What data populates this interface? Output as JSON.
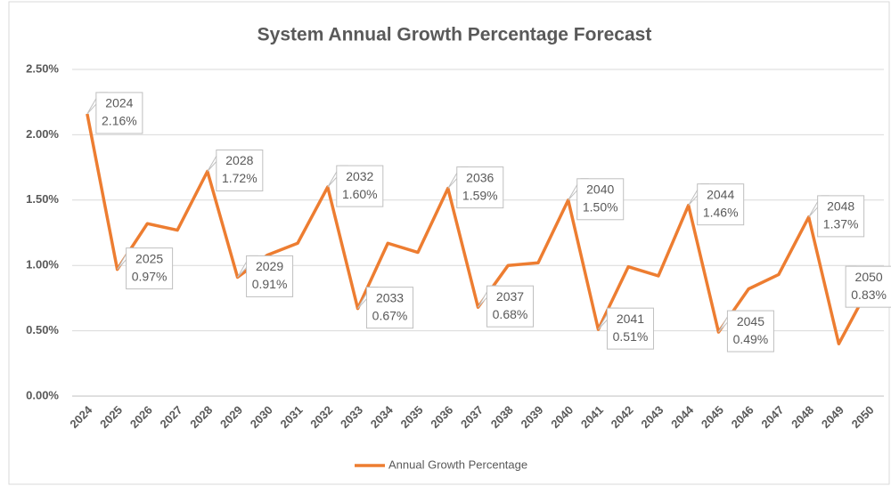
{
  "chart_data": {
    "type": "line",
    "title": "System Annual Growth Percentage Forecast",
    "categories": [
      "2024",
      "2025",
      "2026",
      "2027",
      "2028",
      "2029",
      "2030",
      "2031",
      "2032",
      "2033",
      "2034",
      "2035",
      "2036",
      "2037",
      "2038",
      "2039",
      "2040",
      "2041",
      "2042",
      "2043",
      "2044",
      "2045",
      "2046",
      "2047",
      "2048",
      "2049",
      "2050"
    ],
    "series": [
      {
        "name": "Annual Growth Percentage",
        "color": "#ed7d31",
        "values": [
          2.16,
          0.97,
          1.32,
          1.27,
          1.72,
          0.91,
          1.08,
          1.17,
          1.6,
          0.67,
          1.17,
          1.1,
          1.59,
          0.68,
          1.0,
          1.02,
          1.5,
          0.51,
          0.99,
          0.92,
          1.46,
          0.49,
          0.82,
          0.93,
          1.37,
          0.4,
          0.83
        ],
        "value_labels": [
          "2.16%",
          "0.97%",
          null,
          null,
          "1.72%",
          "0.91%",
          null,
          null,
          "1.60%",
          "0.67%",
          null,
          null,
          "1.59%",
          "0.68%",
          null,
          null,
          "1.50%",
          "0.51%",
          null,
          null,
          "1.46%",
          "0.49%",
          null,
          null,
          "1.37%",
          null,
          "0.83%"
        ]
      }
    ],
    "ylim": [
      0,
      2.5
    ],
    "yticks": [
      {
        "value": 0,
        "label": "0.00%"
      },
      {
        "value": 0.5,
        "label": "0.50%"
      },
      {
        "value": 1,
        "label": "1.00%"
      },
      {
        "value": 1.5,
        "label": "1.50%"
      },
      {
        "value": 2,
        "label": "2.00%"
      },
      {
        "value": 2.5,
        "label": "2.50%"
      }
    ],
    "grid": true,
    "legend": "bottom"
  }
}
